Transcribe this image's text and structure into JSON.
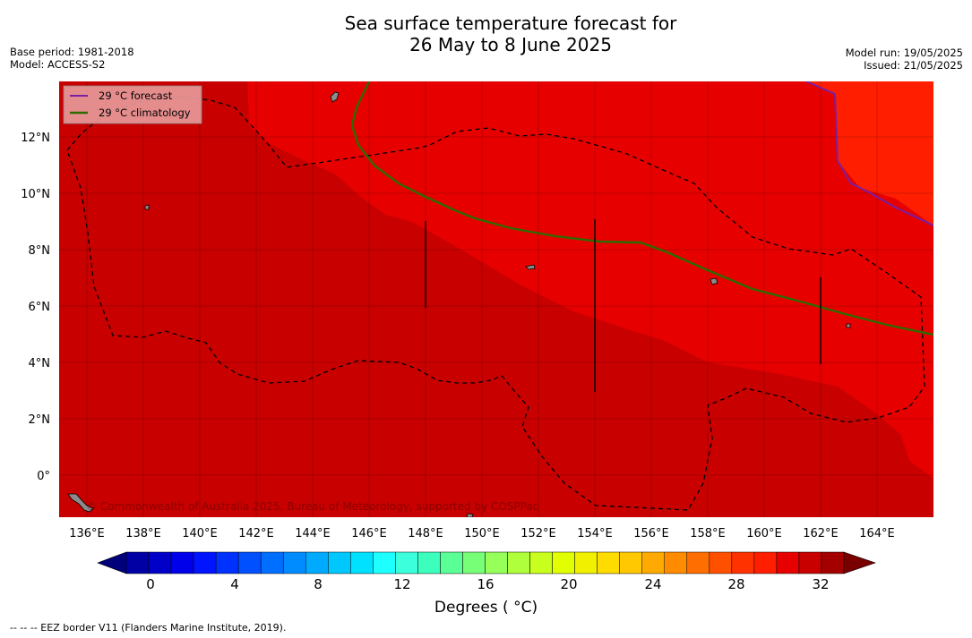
{
  "header": {
    "title_line1": "Sea surface temperature forecast for",
    "title_line2": "26 May to 8 June 2025",
    "left_meta": [
      "Base period: 1981-2018",
      "Model: ACCESS-S2"
    ],
    "right_meta": [
      "Model run: 19/05/2025",
      "Issued: 21/05/2025"
    ]
  },
  "map": {
    "lon_labels": [
      "136°E",
      "138°E",
      "140°E",
      "142°E",
      "144°E",
      "146°E",
      "148°E",
      "150°E",
      "152°E",
      "154°E",
      "156°E",
      "158°E",
      "160°E",
      "162°E",
      "164°E"
    ],
    "lat_labels": [
      "12°N",
      "10°N",
      "8°N",
      "6°N",
      "4°N",
      "2°N",
      "0°"
    ],
    "watermark": "© Commonwealth of Australia 2025, Bureau of Meteorology, supported by COSPPac",
    "colors": {
      "dark_red": "#c80000",
      "mid_red": "#e60000",
      "bright_red": "#ff1e00",
      "forecast_line": "#7a1fa2",
      "climatology_line": "#2e6b00",
      "land": "#8c8c8c"
    }
  },
  "legend": {
    "forecast_label": "29 °C  forecast",
    "climatology_label": "29 °C  climatology"
  },
  "colorbar": {
    "tick_labels": [
      "0",
      "4",
      "8",
      "12",
      "16",
      "20",
      "24",
      "28",
      "32"
    ],
    "label": "Degrees ( °C)",
    "colors": [
      "#00007a",
      "#0000a5",
      "#0000c8",
      "#0000eb",
      "#0014ff",
      "#0032ff",
      "#0050ff",
      "#006eff",
      "#008cff",
      "#00aaff",
      "#00c8ff",
      "#00e1ff",
      "#1effff",
      "#3cffdc",
      "#3cffbe",
      "#5aff96",
      "#78ff78",
      "#96ff5a",
      "#afff3c",
      "#c8ff1e",
      "#e1ff00",
      "#f0f000",
      "#ffdc00",
      "#ffc800",
      "#ffaa00",
      "#ff8c00",
      "#ff6e00",
      "#ff5000",
      "#ff3200",
      "#ff1e00",
      "#e60000",
      "#c80000",
      "#a50000",
      "#7a0000"
    ]
  },
  "footer": {
    "eez_note": "--  --  -- EEZ border V11 (Flanders Marine Institute, 2019)."
  }
}
